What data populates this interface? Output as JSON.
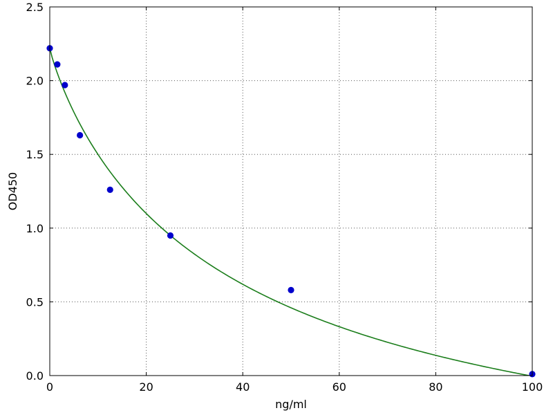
{
  "chart_data": {
    "type": "scatter",
    "title": "",
    "xlabel": "ng/ml",
    "ylabel": "OD450",
    "xlim": [
      0,
      100
    ],
    "ylim": [
      0.0,
      2.5
    ],
    "x_ticks": {
      "values": [
        0,
        20,
        40,
        60,
        80,
        100
      ],
      "labels": [
        "0",
        "20",
        "40",
        "60",
        "80",
        "100"
      ]
    },
    "y_ticks": {
      "values": [
        0.0,
        0.5,
        1.0,
        1.5,
        2.0,
        2.5
      ],
      "labels": [
        "0.0",
        "0.5",
        "1.0",
        "1.5",
        "2.0",
        "2.5"
      ]
    },
    "grid": true,
    "grid_style": "dotted",
    "legend": "none",
    "series": [
      {
        "name": "standard-points",
        "type": "scatter",
        "marker": "circle",
        "color": "#0000cc",
        "x": [
          0,
          1.56,
          3.13,
          6.25,
          12.5,
          25,
          50,
          100
        ],
        "y": [
          2.22,
          2.11,
          1.97,
          1.63,
          1.26,
          0.95,
          0.58,
          0.01
        ]
      },
      {
        "name": "fit-curve",
        "type": "line",
        "color": "#1a7d1a",
        "model": "4pl",
        "params": {
          "a": 2.22,
          "b": 0.889,
          "c": 40.5,
          "d": -1.0
        }
      }
    ],
    "colors": {
      "grid": "#555555",
      "axis": "#000000",
      "background": "#ffffff"
    }
  }
}
